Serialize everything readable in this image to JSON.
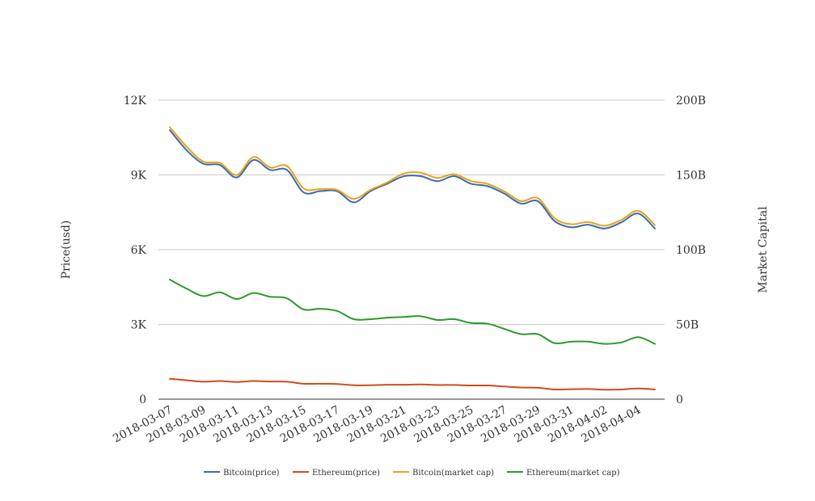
{
  "chart_data": {
    "type": "line",
    "title": "",
    "ylabel_left": "Price(usd)",
    "ylabel_right": "Market Capital",
    "x": [
      "2018-03-07",
      "2018-03-08",
      "2018-03-09",
      "2018-03-10",
      "2018-03-11",
      "2018-03-12",
      "2018-03-13",
      "2018-03-14",
      "2018-03-15",
      "2018-03-16",
      "2018-03-17",
      "2018-03-18",
      "2018-03-19",
      "2018-03-20",
      "2018-03-21",
      "2018-03-22",
      "2018-03-23",
      "2018-03-24",
      "2018-03-25",
      "2018-03-26",
      "2018-03-27",
      "2018-03-28",
      "2018-03-29",
      "2018-03-30",
      "2018-03-31",
      "2018-04-01",
      "2018-04-02",
      "2018-04-03",
      "2018-04-04",
      "2018-04-05"
    ],
    "x_tick_labels": [
      "2018-03-07",
      "2018-03-09",
      "2018-03-11",
      "2018-03-13",
      "2018-03-15",
      "2018-03-17",
      "2018-03-19",
      "2018-03-21",
      "2018-03-23",
      "2018-03-25",
      "2018-03-27",
      "2018-03-29",
      "2018-03-31",
      "2018-04-02",
      "2018-04-04"
    ],
    "y_left": {
      "range": [
        0,
        12000
      ],
      "ticks": [
        0,
        3000,
        6000,
        9000,
        12000
      ],
      "tick_labels": [
        "0",
        "3K",
        "6K",
        "9K",
        "12K"
      ]
    },
    "y_right": {
      "range": [
        0,
        200000000000
      ],
      "ticks": [
        0,
        50000000000,
        100000000000,
        150000000000,
        200000000000
      ],
      "tick_labels": [
        "0",
        "50B",
        "100B",
        "150B",
        "200B"
      ]
    },
    "grid": true,
    "legend_position": "bottom",
    "series": [
      {
        "name": "Bitcoin(price)",
        "axis": "left",
        "color": "#3b6bb5",
        "values": [
          10800,
          10000,
          9450,
          9400,
          8900,
          9600,
          9200,
          9200,
          8300,
          8350,
          8350,
          7900,
          8350,
          8650,
          8950,
          8950,
          8750,
          8950,
          8650,
          8550,
          8250,
          7850,
          7950,
          7150,
          6900,
          7000,
          6850,
          7100,
          7450,
          6850
        ]
      },
      {
        "name": "Ethereum(price)",
        "axis": "left",
        "color": "#d24a1e",
        "values": [
          820,
          760,
          700,
          730,
          690,
          730,
          710,
          700,
          620,
          620,
          610,
          560,
          560,
          580,
          580,
          590,
          570,
          570,
          550,
          550,
          510,
          470,
          460,
          390,
          400,
          410,
          380,
          390,
          430,
          390
        ]
      },
      {
        "name": "Bitcoin(market cap)",
        "axis": "right",
        "color": "#e8a317",
        "values": [
          182000000000,
          169000000000,
          159000000000,
          158000000000,
          150000000000,
          162000000000,
          155000000000,
          156000000000,
          141000000000,
          140500000000,
          140000000000,
          134000000000,
          140000000000,
          145000000000,
          151000000000,
          151500000000,
          148000000000,
          150500000000,
          146000000000,
          144000000000,
          139000000000,
          132500000000,
          134500000000,
          121000000000,
          117000000000,
          118500000000,
          116000000000,
          120000000000,
          126000000000,
          116500000000
        ]
      },
      {
        "name": "Ethereum(market cap)",
        "axis": "right",
        "color": "#2b9a2b",
        "values": [
          80000000000,
          74000000000,
          69000000000,
          71500000000,
          67000000000,
          71000000000,
          68500000000,
          67500000000,
          60000000000,
          60500000000,
          59000000000,
          53500000000,
          53500000000,
          54500000000,
          55000000000,
          55500000000,
          53000000000,
          53500000000,
          51000000000,
          50500000000,
          47000000000,
          43500000000,
          43500000000,
          37500000000,
          38500000000,
          38500000000,
          37000000000,
          38000000000,
          41500000000,
          37000000000
        ]
      }
    ]
  }
}
